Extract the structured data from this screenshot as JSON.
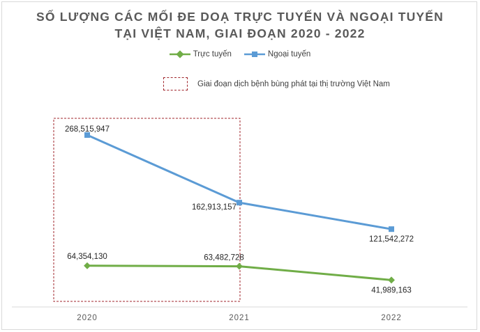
{
  "chart_data": {
    "type": "line",
    "title_line1": "SỐ LƯỢNG CÁC MỐI ĐE DOẠ TRỰC TUYẾN VÀ NGOẠI TUYẾN",
    "title_line2": "TẠI VIỆT NAM, GIAI ĐOẠN 2020 - 2022",
    "categories": [
      "2020",
      "2021",
      "2022"
    ],
    "series": [
      {
        "name": "Trực tuyến",
        "color": "#70ad47",
        "marker": "diamond",
        "values": [
          64354130,
          63482728,
          41989163
        ],
        "labels": [
          "64,354,130",
          "63,482,728",
          "41,989,163"
        ]
      },
      {
        "name": "Ngoại tuyến",
        "color": "#5b9bd5",
        "marker": "square",
        "values": [
          268515947,
          162913157,
          121542272
        ],
        "labels": [
          "268,515,947",
          "162,913,157",
          "121,542,272"
        ]
      }
    ],
    "highlight": {
      "label": "Giai đoạn dịch bệnh bùng phát tại thị trường Việt Nam",
      "color": "#a0252b",
      "range": [
        "2020",
        "2021"
      ]
    },
    "ylim": [
      0,
      300000000
    ],
    "grid": false,
    "legend_position": "top"
  }
}
